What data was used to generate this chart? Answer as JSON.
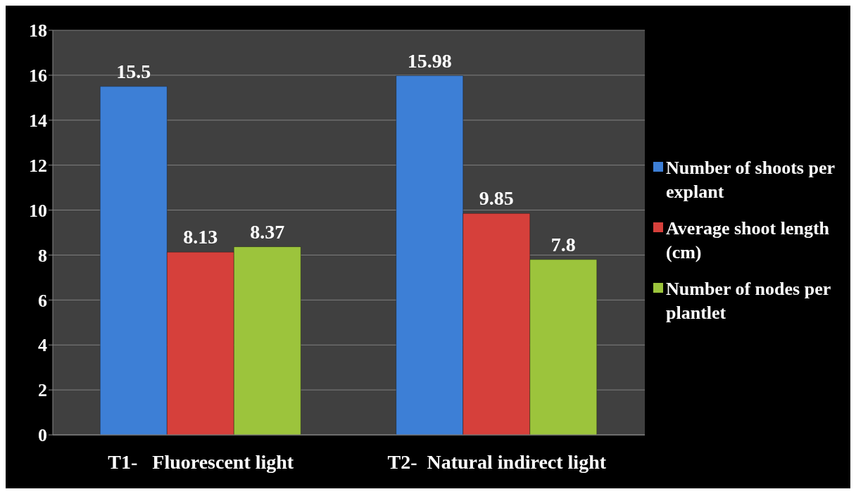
{
  "chart_data": {
    "type": "bar",
    "categories": [
      "T1-   Fluorescent light",
      "T2-  Natural indirect light"
    ],
    "series": [
      {
        "name": "Number of shoots per explant",
        "color": "#3d7fd6",
        "values": [
          15.5,
          15.98
        ]
      },
      {
        "name": "Average shoot length (cm)",
        "color": "#d6403b",
        "values": [
          8.13,
          9.85
        ]
      },
      {
        "name": "Number of nodes per plantlet",
        "color": "#9cc43c",
        "values": [
          8.37,
          7.8
        ]
      }
    ],
    "ylim": [
      0,
      18
    ],
    "yticks": [
      0,
      2,
      4,
      6,
      8,
      10,
      12,
      14,
      16,
      18
    ],
    "grid": "y",
    "legend": "right",
    "data_labels": true
  }
}
